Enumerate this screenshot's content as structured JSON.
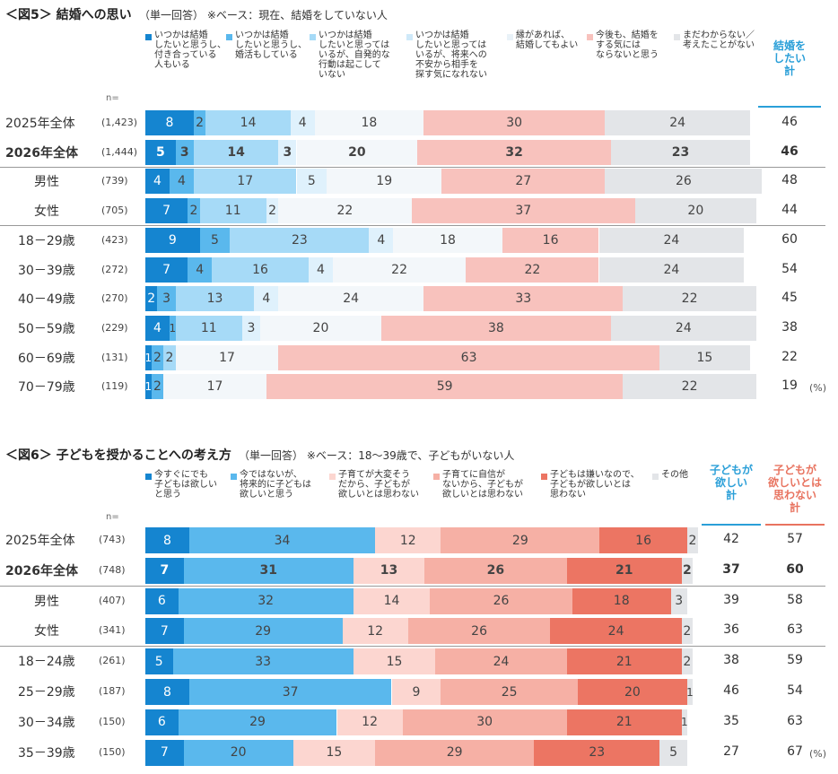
{
  "chart_data": [
    {
      "type": "bar",
      "orientation": "horizontal-stacked-100",
      "title": "＜図5＞ 結婚への思い",
      "subtitle": "（単一回答） ※ベース：現在、結婚をしていない人",
      "n_label": "n=",
      "unit": "(%)",
      "colors": [
        "#1585d0",
        "#5ab8ed",
        "#a6daf7",
        "#dff1fc",
        "#f3f7fa",
        "#f8c2bd",
        "#e3e5e8"
      ],
      "series": [
        {
          "name": "いつかは結婚\nしたいと思うし、\n付き合っている\n人もいる",
          "values": [
            8,
            5,
            4,
            7,
            9,
            7,
            2,
            4,
            1,
            1
          ]
        },
        {
          "name": "いつかは結婚\nしたいと思うし、\n婚活もしている",
          "values": [
            2,
            3,
            4,
            2,
            5,
            4,
            3,
            1,
            2,
            2
          ]
        },
        {
          "name": "いつかは結婚\nしたいと思っては\nいるが、自発的な\n行動は起こして\nいない",
          "values": [
            14,
            14,
            17,
            11,
            23,
            16,
            13,
            11,
            2,
            0
          ]
        },
        {
          "name": "いつかは結婚\nしたいと思っては\nいるが、将来への\n不安から相手を\n探す気になれない",
          "values": [
            4,
            3,
            5,
            2,
            4,
            4,
            4,
            3,
            0,
            0
          ]
        },
        {
          "name": "縁があれば、\n結婚してもよい",
          "values": [
            18,
            20,
            19,
            22,
            18,
            22,
            24,
            20,
            17,
            17
          ]
        },
        {
          "name": "今後も、結婚を\nする気には\nならないと思う",
          "values": [
            30,
            32,
            27,
            37,
            16,
            22,
            33,
            38,
            63,
            59
          ]
        },
        {
          "name": "まだわからない／\n考えたことがない",
          "values": [
            24,
            23,
            26,
            20,
            24,
            24,
            22,
            24,
            15,
            22
          ]
        }
      ],
      "categories": [
        "2025年全体",
        "2026年全体",
        "男性",
        "女性",
        "18－29歳",
        "30－39歳",
        "40－49歳",
        "50－59歳",
        "60－69歳",
        "70－79歳"
      ],
      "n": [
        "(1,423)",
        "(1,444)",
        "(739)",
        "(705)",
        "(423)",
        "(272)",
        "(270)",
        "(229)",
        "(131)",
        "(119)"
      ],
      "bold_rows": [
        1
      ],
      "summary": [
        {
          "name": "結婚を\nしたい\n計",
          "color": "#2a9fd8",
          "values": [
            "46",
            "46",
            "48",
            "44",
            "60",
            "54",
            "45",
            "38",
            "22",
            "19"
          ]
        }
      ]
    },
    {
      "type": "bar",
      "orientation": "horizontal-stacked-100",
      "title": "＜図6＞ 子どもを授かることへの考え方",
      "subtitle": "（単一回答） ※ベース：18～39歳で、子どもがいない人",
      "n_label": "n=",
      "unit": "(%)",
      "colors": [
        "#1585d0",
        "#5ab8ed",
        "#fcd6d0",
        "#f6b0a5",
        "#ec7563",
        "#e3e5e8"
      ],
      "series": [
        {
          "name": "今すぐにでも\n子どもは欲しい\nと思う",
          "values": [
            8,
            7,
            6,
            7,
            5,
            8,
            6,
            7
          ]
        },
        {
          "name": "今ではないが、\n将来的に子どもは\n欲しいと思う",
          "values": [
            34,
            31,
            32,
            29,
            33,
            37,
            29,
            20
          ]
        },
        {
          "name": "子育てが大変そう\nだから、子どもが\n欲しいとは思わない",
          "values": [
            12,
            13,
            14,
            12,
            15,
            9,
            12,
            15
          ]
        },
        {
          "name": "子育てに自信が\nないから、子どもが\n欲しいとは思わない",
          "values": [
            29,
            26,
            26,
            26,
            24,
            25,
            30,
            29
          ]
        },
        {
          "name": "子どもは嫌いなので、\n子どもが欲しいとは\n思わない",
          "values": [
            16,
            21,
            18,
            24,
            21,
            20,
            21,
            23
          ]
        },
        {
          "name": "その他",
          "values": [
            2,
            2,
            3,
            2,
            2,
            1,
            1,
            5
          ]
        }
      ],
      "categories": [
        "2025年全体",
        "2026年全体",
        "男性",
        "女性",
        "18－24歳",
        "25－29歳",
        "30－34歳",
        "35－39歳"
      ],
      "n": [
        "(743)",
        "(748)",
        "(407)",
        "(341)",
        "(261)",
        "(187)",
        "(150)",
        "(150)"
      ],
      "bold_rows": [
        1
      ],
      "summary": [
        {
          "name": "子どもが\n欲しい\n計",
          "color": "#2a9fd8",
          "values": [
            "42",
            "37",
            "39",
            "36",
            "38",
            "46",
            "35",
            "27"
          ]
        },
        {
          "name": "子どもが\n欲しいとは\n思わない\n計",
          "color": "#e8735f",
          "values": [
            "57",
            "60",
            "58",
            "63",
            "59",
            "54",
            "63",
            "67"
          ]
        }
      ]
    }
  ]
}
